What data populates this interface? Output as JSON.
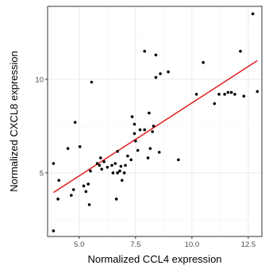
{
  "chart_data": {
    "type": "scatter",
    "title": "",
    "xlabel": "Normalized CCL4 expression",
    "ylabel": "Normalized CXCL8 expression",
    "xlim": [
      3.6,
      13.1
    ],
    "ylim": [
      1.6,
      13.9
    ],
    "x_ticks": [
      5.0,
      7.5,
      10.0,
      12.5
    ],
    "x_tick_labels": [
      "5.0",
      "7.5",
      "10.0",
      "12.5"
    ],
    "y_ticks": [
      5,
      10
    ],
    "y_tick_labels": [
      "5",
      "10"
    ],
    "grid": true,
    "background": "#ffffff",
    "point_color": "#000000",
    "fit_color": "#e31a1c",
    "points": [
      [
        3.86,
        1.9
      ],
      [
        3.86,
        5.5
      ],
      [
        4.06,
        3.6
      ],
      [
        4.1,
        4.6
      ],
      [
        4.5,
        6.3
      ],
      [
        4.65,
        3.8
      ],
      [
        4.75,
        4.1
      ],
      [
        4.82,
        7.7
      ],
      [
        5.03,
        6.4
      ],
      [
        5.2,
        4.3
      ],
      [
        5.3,
        4.0
      ],
      [
        5.4,
        4.4
      ],
      [
        5.45,
        3.3
      ],
      [
        5.5,
        5.1
      ],
      [
        5.55,
        9.85
      ],
      [
        5.8,
        5.5
      ],
      [
        5.9,
        5.4
      ],
      [
        5.95,
        5.8
      ],
      [
        6.0,
        5.2
      ],
      [
        6.1,
        5.6
      ],
      [
        6.25,
        5.3
      ],
      [
        6.45,
        5.4
      ],
      [
        6.5,
        5.0
      ],
      [
        6.6,
        5.5
      ],
      [
        6.65,
        3.6
      ],
      [
        6.7,
        6.15
      ],
      [
        6.7,
        5.0
      ],
      [
        6.8,
        5.1
      ],
      [
        6.85,
        5.35
      ],
      [
        6.9,
        4.6
      ],
      [
        7.0,
        5.0
      ],
      [
        7.05,
        5.4
      ],
      [
        7.15,
        5.9
      ],
      [
        7.3,
        5.7
      ],
      [
        7.35,
        8.0
      ],
      [
        7.45,
        7.1
      ],
      [
        7.45,
        7.6
      ],
      [
        7.5,
        6.7
      ],
      [
        7.6,
        6.2
      ],
      [
        7.7,
        7.3
      ],
      [
        7.9,
        11.5
      ],
      [
        7.9,
        7.3
      ],
      [
        8.05,
        5.8
      ],
      [
        8.1,
        8.2
      ],
      [
        8.15,
        6.3
      ],
      [
        8.25,
        7.2
      ],
      [
        8.3,
        7.5
      ],
      [
        8.4,
        11.3
      ],
      [
        8.4,
        10.1
      ],
      [
        8.55,
        6.1
      ],
      [
        8.6,
        10.3
      ],
      [
        8.95,
        10.4
      ],
      [
        9.4,
        5.7
      ],
      [
        10.2,
        9.2
      ],
      [
        10.5,
        10.9
      ],
      [
        11.0,
        8.7
      ],
      [
        11.2,
        9.2
      ],
      [
        11.45,
        9.2
      ],
      [
        11.6,
        9.3
      ],
      [
        11.75,
        9.3
      ],
      [
        11.9,
        9.2
      ],
      [
        12.15,
        11.5
      ],
      [
        12.3,
        9.1
      ],
      [
        12.7,
        13.5
      ],
      [
        12.9,
        9.35
      ]
    ],
    "fit_line": [
      [
        3.86,
        3.95
      ],
      [
        12.9,
        11.0
      ]
    ]
  }
}
